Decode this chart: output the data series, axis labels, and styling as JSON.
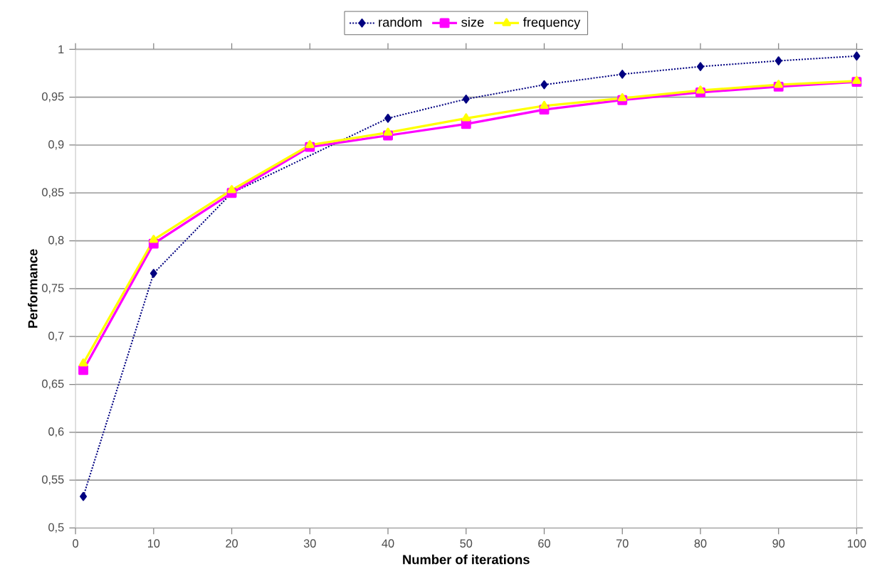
{
  "chart_data": {
    "type": "line",
    "xlabel": "Number of iterations",
    "ylabel": "Performance",
    "x": [
      1,
      10,
      20,
      30,
      40,
      50,
      60,
      70,
      80,
      90,
      100
    ],
    "series": [
      {
        "name": "random",
        "color": "#000080",
        "marker": "diamond",
        "line_style": "dotted",
        "values": [
          0.533,
          0.766,
          0.85,
          null,
          0.928,
          0.948,
          0.963,
          0.974,
          0.982,
          0.988,
          0.993
        ]
      },
      {
        "name": "size",
        "color": "#ff00ff",
        "marker": "square",
        "line_style": "solid",
        "values": [
          0.665,
          0.797,
          0.85,
          0.898,
          0.91,
          0.922,
          0.937,
          0.947,
          0.955,
          0.961,
          0.966
        ]
      },
      {
        "name": "frequency",
        "color": "#ffff00",
        "marker": "triangle",
        "line_style": "solid",
        "values": [
          0.672,
          0.801,
          0.853,
          0.9,
          0.913,
          0.928,
          0.941,
          0.949,
          0.957,
          0.963,
          0.967
        ]
      }
    ],
    "xlim": [
      0,
      100
    ],
    "xticks": [
      0,
      10,
      20,
      30,
      40,
      50,
      60,
      70,
      80,
      90,
      100
    ],
    "ylim": [
      0.5,
      1
    ],
    "yticks": [
      {
        "value": 0.5,
        "label": "0,5"
      },
      {
        "value": 0.55,
        "label": "0,55"
      },
      {
        "value": 0.6,
        "label": "0,6"
      },
      {
        "value": 0.65,
        "label": "0,65"
      },
      {
        "value": 0.7,
        "label": "0,7"
      },
      {
        "value": 0.75,
        "label": "0,75"
      },
      {
        "value": 0.8,
        "label": "0,8"
      },
      {
        "value": 0.85,
        "label": "0,85"
      },
      {
        "value": 0.9,
        "label": "0,9"
      },
      {
        "value": 0.95,
        "label": "0,95"
      },
      {
        "value": 1,
        "label": "1"
      }
    ],
    "grid": "y",
    "legend": "top"
  }
}
